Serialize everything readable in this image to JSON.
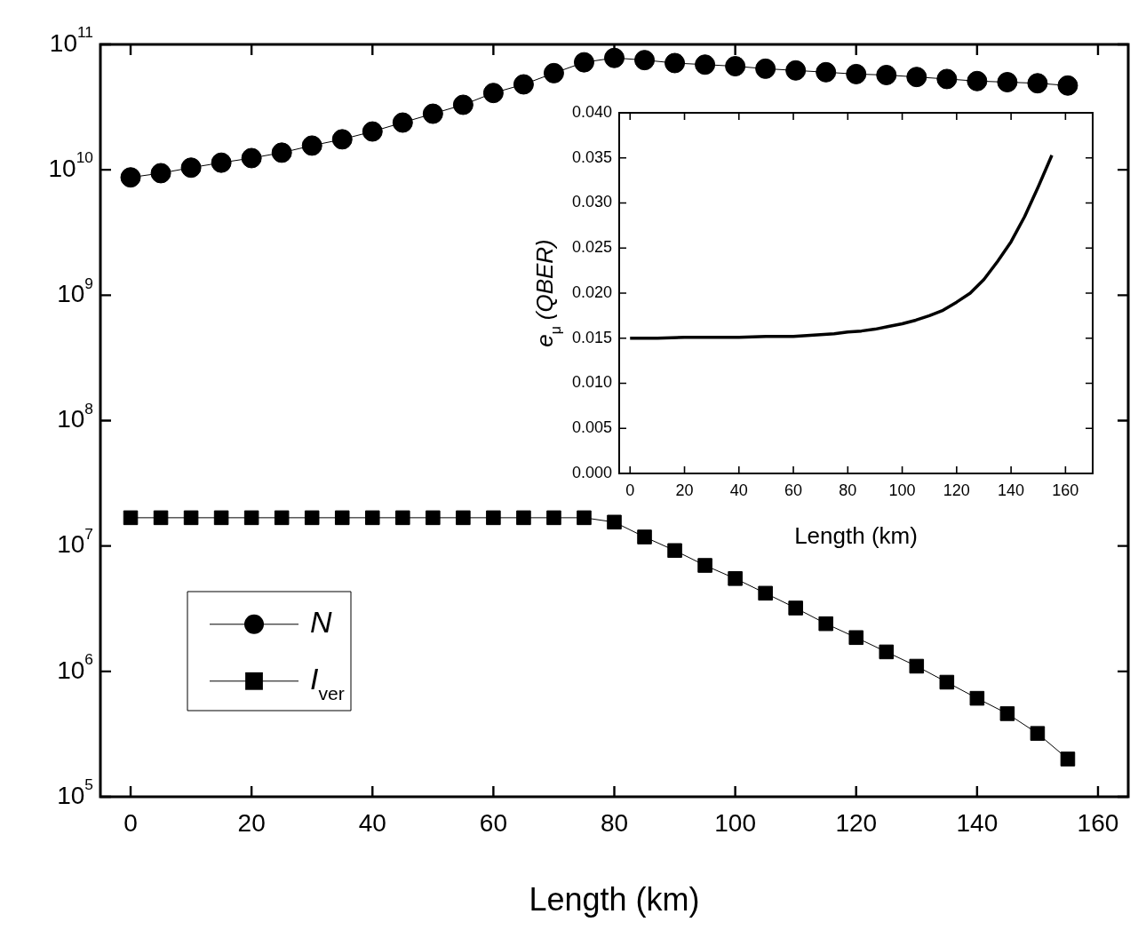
{
  "chart_data": [
    {
      "type": "line",
      "xlabel": "Length (km)",
      "log": "y",
      "legend": "bottom left",
      "x": [
        0,
        5,
        10,
        15,
        20,
        25,
        30,
        35,
        40,
        45,
        50,
        55,
        60,
        65,
        70,
        75,
        80,
        85,
        90,
        95,
        100,
        105,
        110,
        115,
        120,
        125,
        130,
        135,
        140,
        145,
        150,
        155
      ],
      "series": [
        {
          "name": "N",
          "color": "#000000",
          "marker": "circle",
          "values": [
            8700000000.0,
            9400000000.0,
            10400000000.0,
            11400000000.0,
            12400000000.0,
            13700000000.0,
            15600000000.0,
            17500000000.0,
            20200000000.0,
            23800000000.0,
            28000000000.0,
            33000000000.0,
            41000000000.0,
            48000000000.0,
            59000000000.0,
            72000000000.0,
            78000000000.0,
            75000000000.0,
            71000000000.0,
            69000000000.0,
            67000000000.0,
            64000000000.0,
            62000000000.0,
            60000000000.0,
            58000000000.0,
            57000000000.0,
            55000000000.0,
            53000000000.0,
            51000000000.0,
            50000000000.0,
            49000000000.0,
            47000000000.0
          ]
        },
        {
          "name": "I$_{ver}$",
          "color": "#000000",
          "marker": "square",
          "values": [
            16800000.0,
            16800000.0,
            16800000.0,
            16800000.0,
            16800000.0,
            16800000.0,
            16800000.0,
            16800000.0,
            16800000.0,
            16800000.0,
            16800000.0,
            16800000.0,
            16800000.0,
            16800000.0,
            16800000.0,
            16800000.0,
            15500000.0,
            11800000.0,
            9200000.0,
            7000000.0,
            5500000.0,
            4200000.0,
            3200000.0,
            2400000.0,
            1860000.0,
            1430000.0,
            1100000.0,
            820000.0,
            610000.0,
            460000.0,
            320000.0,
            200000.0
          ]
        }
      ],
      "xlim": [
        -5,
        165
      ],
      "xticks": [
        0,
        20,
        40,
        60,
        80,
        100,
        120,
        140,
        160
      ],
      "ylim": [
        100000.0,
        100000000000.0
      ],
      "yticks": [
        {
          "value": 100000.0,
          "label": "10$^{5}$"
        },
        {
          "value": 1000000.0,
          "label": "10$^{6}$"
        },
        {
          "value": 10000000.0,
          "label": "10$^{7}$"
        },
        {
          "value": 100000000.0,
          "label": "10$^{8}$"
        },
        {
          "value": 1000000000.0,
          "label": "10$^{9}$"
        },
        {
          "value": 10000000000.0,
          "label": "10$^{10}$"
        },
        {
          "value": 100000000000.0,
          "label": "10$^{11}$"
        }
      ]
    },
    {
      "type": "line",
      "xlabel": "Length (km)",
      "ylabel": "e$_{μ}$ (QBER)",
      "marker": "none",
      "x": [
        0,
        10,
        20,
        30,
        40,
        50,
        60,
        70,
        75,
        80,
        85,
        90,
        95,
        100,
        105,
        110,
        115,
        120,
        125,
        130,
        135,
        140,
        145,
        150,
        155
      ],
      "series": [
        {
          "color": "#000000",
          "values": [
            0.015,
            0.015,
            0.0151,
            0.0151,
            0.0151,
            0.0152,
            0.0152,
            0.0154,
            0.0155,
            0.0157,
            0.0158,
            0.016,
            0.0163,
            0.0166,
            0.017,
            0.0175,
            0.0181,
            0.019,
            0.02,
            0.0215,
            0.0235,
            0.0257,
            0.0285,
            0.0318,
            0.0353
          ]
        }
      ],
      "xlim": [
        -4,
        170
      ],
      "xticks": [
        0,
        20,
        40,
        60,
        80,
        100,
        120,
        140,
        160
      ],
      "ylim": [
        0,
        0.04
      ],
      "yticks": [
        {
          "value": 0,
          "label": "0.000"
        },
        {
          "value": 0.005,
          "label": "0.005"
        },
        {
          "value": 0.01,
          "label": "0.010"
        },
        {
          "value": 0.015,
          "label": "0.015"
        },
        {
          "value": 0.02,
          "label": "0.020"
        },
        {
          "value": 0.025,
          "label": "0.025"
        },
        {
          "value": 0.03,
          "label": "0.030"
        },
        {
          "value": 0.035,
          "label": "0.035"
        },
        {
          "value": 0.04,
          "label": "0.040"
        }
      ]
    }
  ]
}
